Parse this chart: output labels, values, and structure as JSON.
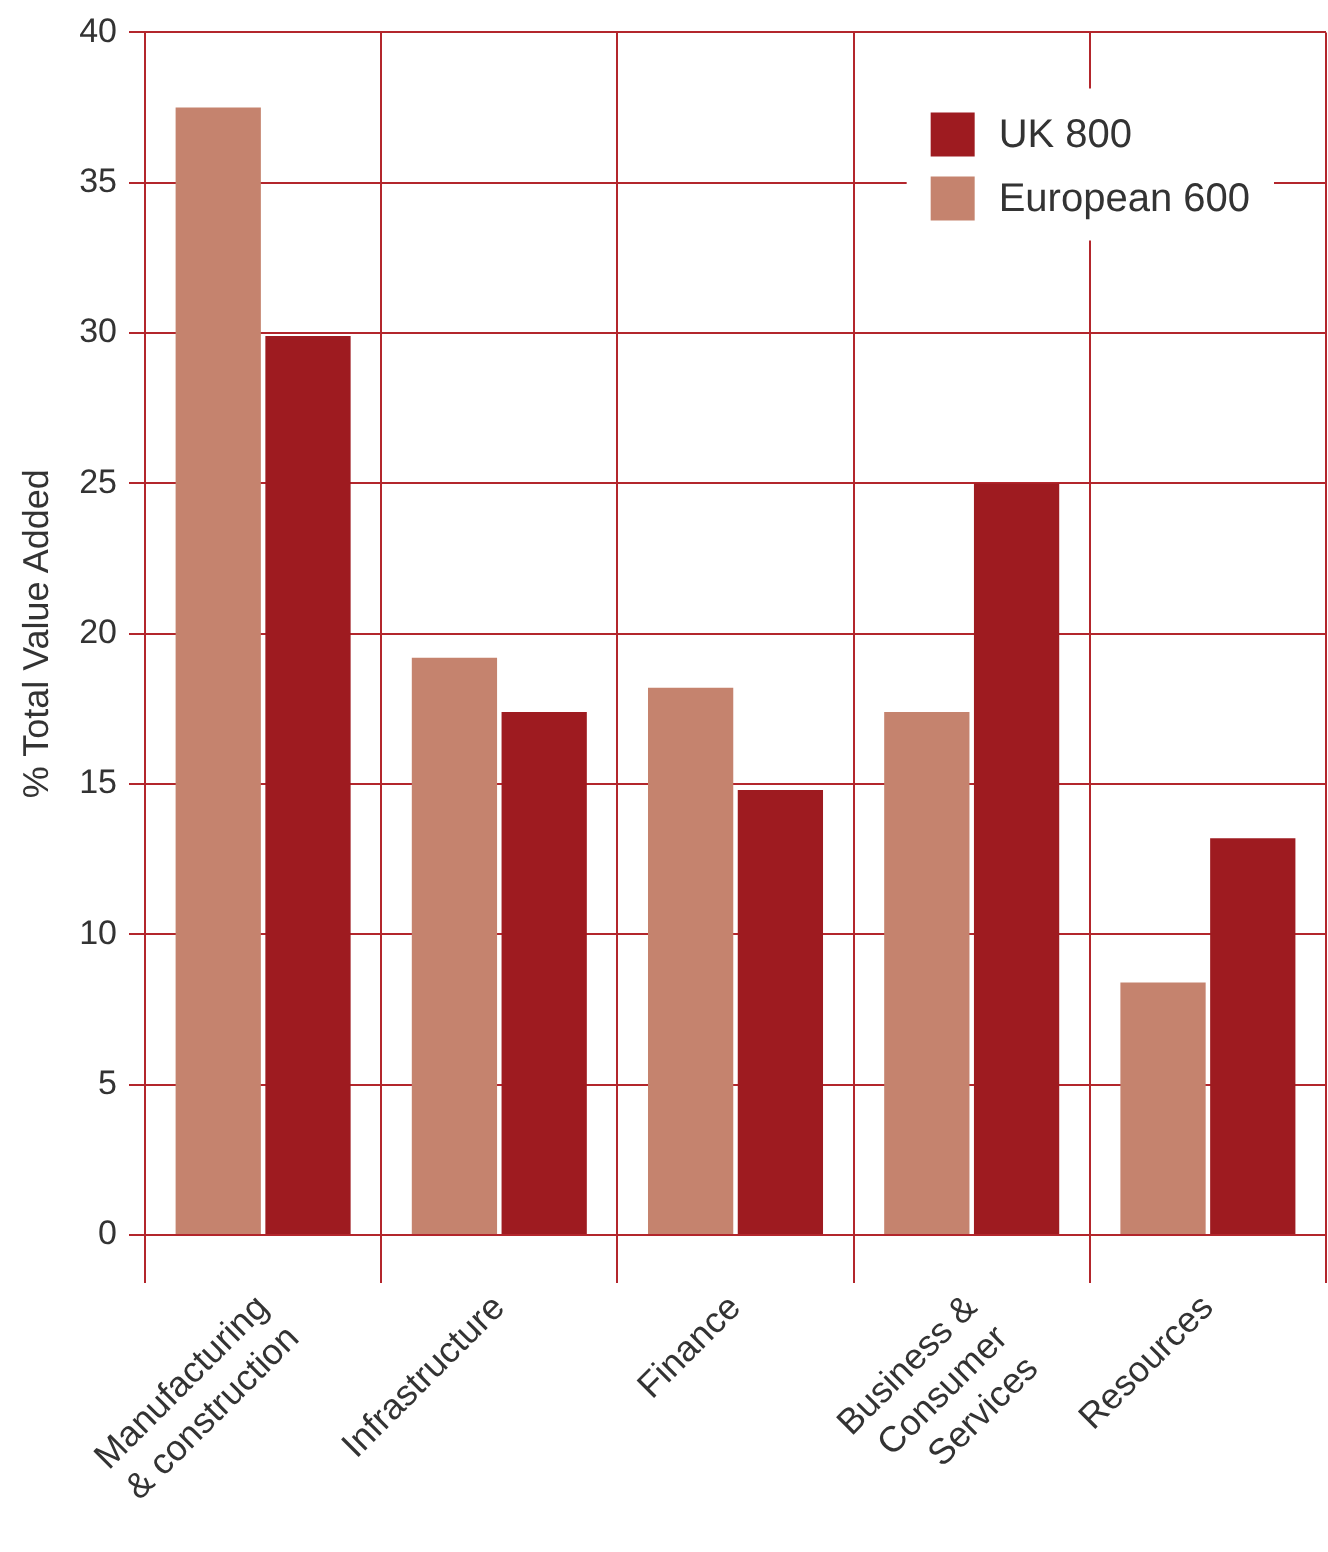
{
  "chart_data": {
    "type": "bar",
    "ylabel": "% Total Value Added",
    "categories": [
      "Manufacturing & construction",
      "Infrastructure",
      "Finance",
      "Business & Consumer Services",
      "Resources"
    ],
    "series": [
      {
        "name": "European 600",
        "color": "#c5836e",
        "values": [
          37.5,
          19.2,
          18.2,
          17.4,
          8.4
        ]
      },
      {
        "name": "UK 800",
        "color": "#9e1b20",
        "values": [
          29.9,
          17.4,
          14.8,
          25.0,
          13.2
        ]
      }
    ],
    "ylim": [
      0,
      40
    ],
    "yticks": [
      0,
      5,
      10,
      15,
      20,
      25,
      30,
      35,
      40
    ],
    "grid": true,
    "legend": "top right"
  }
}
